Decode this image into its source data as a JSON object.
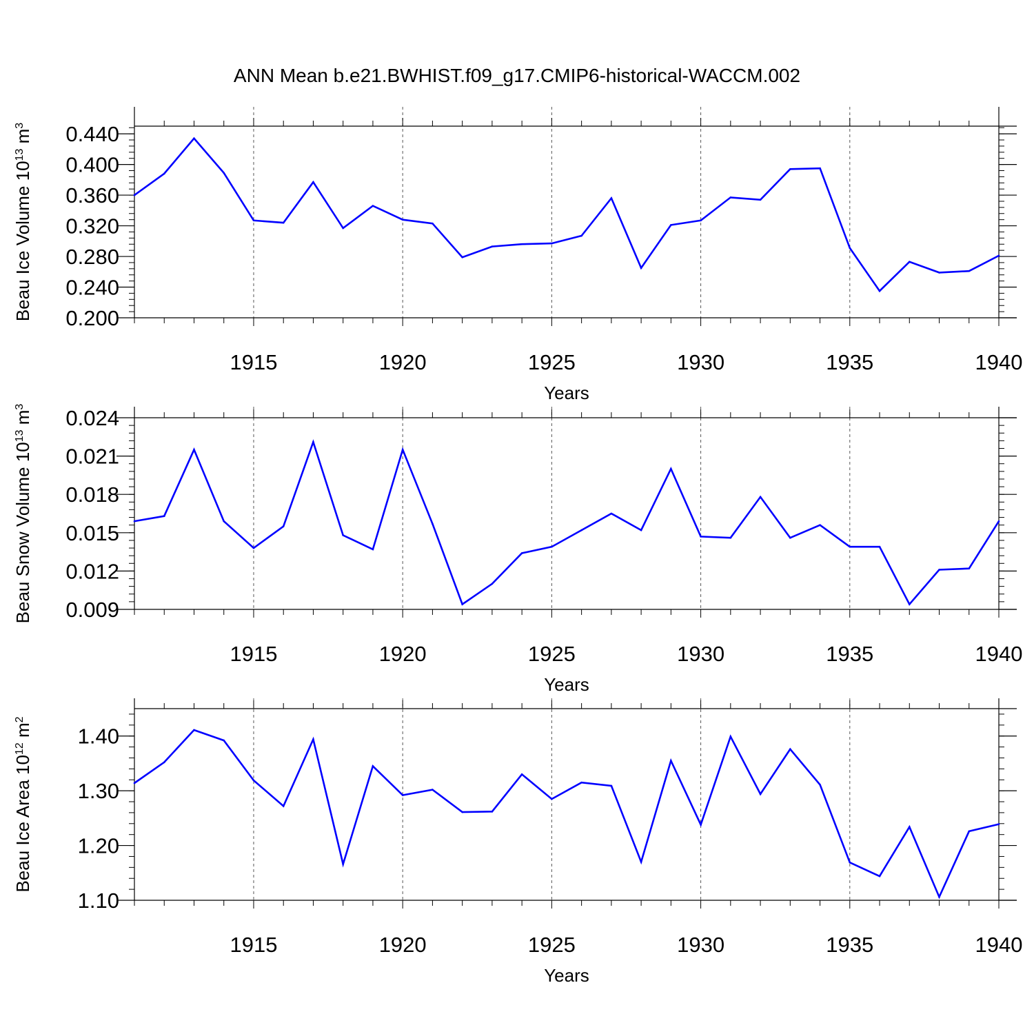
{
  "title": "ANN Mean b.e21.BWHIST.f09_g17.CMIP6-historical-WACCM.002",
  "colors": {
    "line": "#0000ff",
    "grid": "#555555",
    "axis": "#000000"
  },
  "chart_data": [
    {
      "type": "line",
      "title": "",
      "xlabel": "Years",
      "ylabel": {
        "main": "Beau Ice Volume 10",
        "sup1": "13",
        "unit": " m",
        "sup2": "3"
      },
      "xlim": [
        1911,
        1940
      ],
      "ylim": [
        0.2,
        0.45
      ],
      "yticks": [
        0.2,
        0.24,
        0.28,
        0.32,
        0.36,
        0.4,
        0.44
      ],
      "ytick_labels": [
        "0.200",
        "0.240",
        "0.280",
        "0.320",
        "0.360",
        "0.400",
        "0.440"
      ],
      "yminor_step": 0.008,
      "xticks": [
        1915,
        1920,
        1925,
        1930,
        1935,
        1940
      ],
      "xtick_labels": [
        "1915",
        "1920",
        "1925",
        "1930",
        "1935",
        "1940"
      ],
      "grid": "vertical dashed at labeled years",
      "x": [
        1911,
        1912,
        1913,
        1914,
        1915,
        1916,
        1917,
        1918,
        1919,
        1920,
        1921,
        1922,
        1923,
        1924,
        1925,
        1926,
        1927,
        1928,
        1929,
        1930,
        1931,
        1932,
        1933,
        1934,
        1935,
        1936,
        1937,
        1938,
        1939,
        1940
      ],
      "y": [
        0.36,
        0.388,
        0.434,
        0.389,
        0.327,
        0.324,
        0.377,
        0.317,
        0.346,
        0.328,
        0.323,
        0.279,
        0.293,
        0.296,
        0.297,
        0.307,
        0.356,
        0.265,
        0.321,
        0.327,
        0.357,
        0.354,
        0.394,
        0.395,
        0.291,
        0.235,
        0.273,
        0.259,
        0.261,
        0.281
      ]
    },
    {
      "type": "line",
      "title": "",
      "xlabel": "Years",
      "ylabel": {
        "main": "Beau Snow Volume 10",
        "sup1": "13",
        "unit": " m",
        "sup2": "3"
      },
      "xlim": [
        1911,
        1940
      ],
      "ylim": [
        0.009,
        0.024
      ],
      "yticks": [
        0.009,
        0.012,
        0.015,
        0.018,
        0.021,
        0.024
      ],
      "ytick_labels": [
        "0.009",
        "0.012",
        "0.015",
        "0.018",
        "0.021",
        "0.024"
      ],
      "yminor_step": 0.0006,
      "xticks": [
        1915,
        1920,
        1925,
        1930,
        1935,
        1940
      ],
      "xtick_labels": [
        "1915",
        "1920",
        "1925",
        "1930",
        "1935",
        "1940"
      ],
      "grid": "vertical dashed at labeled years",
      "x": [
        1911,
        1912,
        1913,
        1914,
        1915,
        1916,
        1917,
        1918,
        1919,
        1920,
        1921,
        1922,
        1923,
        1924,
        1925,
        1926,
        1927,
        1928,
        1929,
        1930,
        1931,
        1932,
        1933,
        1934,
        1935,
        1936,
        1937,
        1938,
        1939,
        1940
      ],
      "y": [
        0.0159,
        0.0163,
        0.0215,
        0.0159,
        0.0138,
        0.0155,
        0.0221,
        0.0148,
        0.0137,
        0.0215,
        0.0157,
        0.0094,
        0.011,
        0.0134,
        0.0139,
        0.0152,
        0.0165,
        0.0152,
        0.02,
        0.0147,
        0.0146,
        0.0178,
        0.0146,
        0.0156,
        0.0139,
        0.0139,
        0.0094,
        0.0121,
        0.0122,
        0.0159
      ]
    },
    {
      "type": "line",
      "title": "",
      "xlabel": "Years",
      "ylabel": {
        "main": "Beau Ice Area 10",
        "sup1": "12",
        "unit": " m",
        "sup2": "2"
      },
      "xlim": [
        1911,
        1940
      ],
      "ylim": [
        1.1,
        1.45
      ],
      "yticks": [
        1.1,
        1.2,
        1.3,
        1.4
      ],
      "ytick_labels": [
        "1.10",
        "1.20",
        "1.30",
        "1.40"
      ],
      "yminor_step": 0.02,
      "xticks": [
        1915,
        1920,
        1925,
        1930,
        1935,
        1940
      ],
      "xtick_labels": [
        "1915",
        "1920",
        "1925",
        "1930",
        "1935",
        "1940"
      ],
      "grid": "vertical dashed at labeled years",
      "x": [
        1911,
        1912,
        1913,
        1914,
        1915,
        1916,
        1917,
        1918,
        1919,
        1920,
        1921,
        1922,
        1923,
        1924,
        1925,
        1926,
        1927,
        1928,
        1929,
        1930,
        1931,
        1932,
        1933,
        1934,
        1935,
        1936,
        1937,
        1938,
        1939,
        1940
      ],
      "y": [
        1.314,
        1.352,
        1.411,
        1.392,
        1.319,
        1.272,
        1.394,
        1.166,
        1.345,
        1.292,
        1.302,
        1.261,
        1.262,
        1.33,
        1.285,
        1.315,
        1.309,
        1.17,
        1.355,
        1.238,
        1.399,
        1.294,
        1.376,
        1.311,
        1.169,
        1.144,
        1.234,
        1.106,
        1.226,
        1.239
      ]
    }
  ]
}
